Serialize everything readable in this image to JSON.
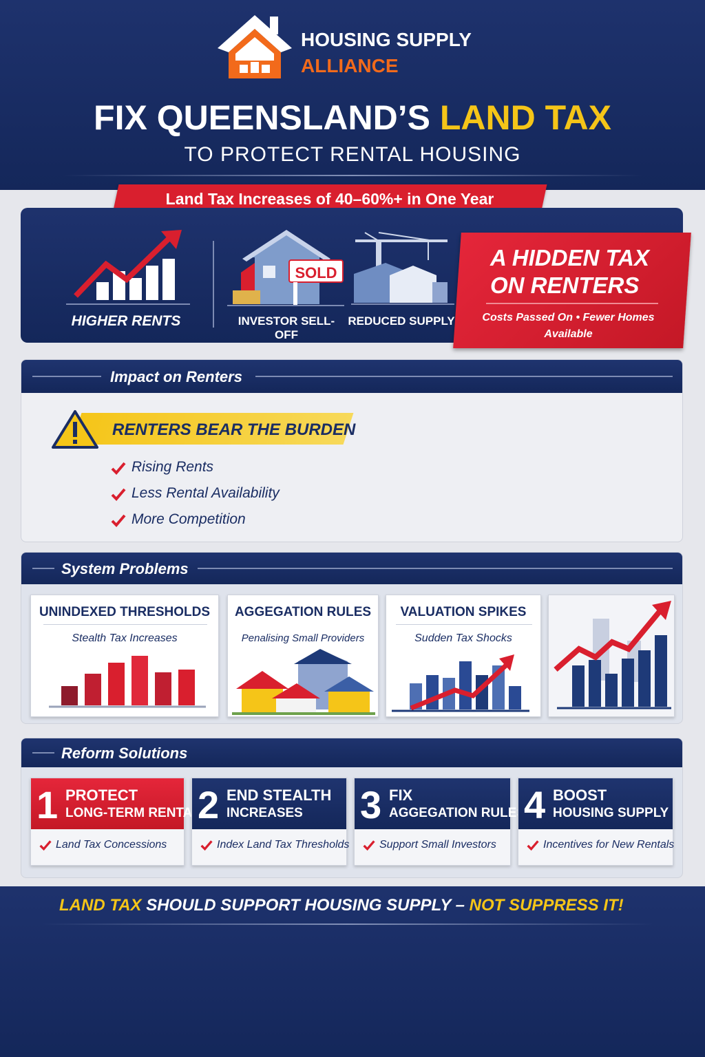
{
  "header": {
    "logo": {
      "line1": "HOUSING SUPPLY",
      "line2": "ALLIANCE"
    },
    "title": {
      "main": "FIX QUEENSLAND’S",
      "highlight": "LAND TAX"
    },
    "subtitle": "TO PROTECT RENTAL HOUSING"
  },
  "banner": "Land Tax Increases of 40–60%+ in One Year",
  "effects": {
    "items": [
      "HIGHER RENTS",
      "INVESTOR SELL-OFF",
      "REDUCED SUPPLY"
    ],
    "sold_sign": "SOLD"
  },
  "callout": {
    "title": "A HIDDEN TAX ON RENTERS",
    "text": "Costs Passed On • Fewer Homes Available"
  },
  "impact": {
    "heading": "Impact on Renters",
    "alert": "RENTERS BEAR THE BURDEN",
    "points": [
      "Rising Rents",
      "Less Rental Availability",
      "More Competition"
    ]
  },
  "problems": {
    "heading": "System Problems",
    "cards": [
      {
        "title": "UNINDEXED THRESHOLDS",
        "subtitle": "Stealth Tax Increases"
      },
      {
        "title": "AGGEGATION RULES",
        "subtitle": "Penalising Small Providers"
      },
      {
        "title": "VALUATION SPIKES",
        "subtitle": "Sudden Tax Shocks"
      }
    ]
  },
  "solutions": {
    "heading": "Reform Solutions",
    "cards": [
      {
        "number": "1",
        "title": [
          "PROTECT",
          "LONG-TERM RENTALS"
        ],
        "item": "Land Tax Concessions"
      },
      {
        "number": "2",
        "title": [
          "END STEALTH",
          "INCREASES"
        ],
        "item": "Index Land Tax Thresholds"
      },
      {
        "number": "3",
        "title": [
          "FIX",
          "AGGEGATION RULES"
        ],
        "item": "Support Small Investors"
      },
      {
        "number": "4",
        "title": [
          "BOOST",
          "HOUSING SUPPLY"
        ],
        "item": "Incentives for New Rentals"
      }
    ]
  },
  "footer": {
    "lead": "LAND TAX",
    "middle": "SHOULD SUPPORT HOUSING SUPPLY –",
    "end": "NOT SUPPRESS IT!"
  }
}
